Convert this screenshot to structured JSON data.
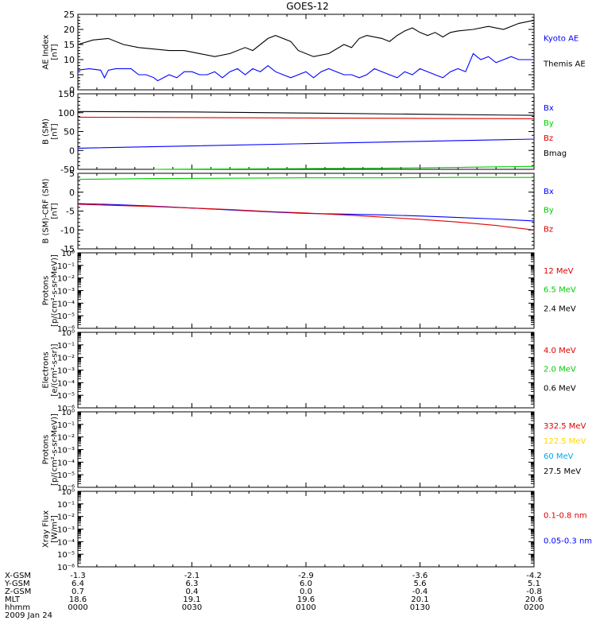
{
  "title": "GOES-12",
  "colors": {
    "black": "#000000",
    "blue": "#0000ff",
    "red": "#dd0000",
    "green": "#00cc00",
    "yellow": "#ffd700",
    "cyan": "#00a8e8"
  },
  "chart_data": [
    {
      "type": "line",
      "panel": "ae",
      "ylabel": [
        "AE Index",
        "[nT]"
      ],
      "ylim": [
        0,
        25
      ],
      "scale": "linear",
      "yticks": [
        "0",
        "5",
        "10",
        "15",
        "20",
        "25"
      ],
      "xlim": [
        0,
        120
      ],
      "legend": [
        {
          "text": "Kyoto AE",
          "color": "blue"
        },
        {
          "text": "Themis AE",
          "color": "black"
        }
      ],
      "series": [
        {
          "color": "black",
          "x": [
            0,
            4,
            8,
            12,
            16,
            20,
            24,
            28,
            32,
            36,
            40,
            44,
            46,
            50,
            52,
            56,
            58,
            62,
            66,
            70,
            72,
            74,
            76,
            80,
            82,
            84,
            86,
            88,
            90,
            92,
            94,
            96,
            98,
            100,
            104,
            108,
            112,
            116,
            120
          ],
          "y": [
            15,
            16.5,
            17,
            15,
            14,
            13.5,
            13,
            13,
            12,
            11,
            12,
            14,
            13,
            17,
            18,
            16,
            13,
            11,
            12,
            15,
            14,
            17,
            18,
            17,
            16,
            18,
            19.5,
            20.5,
            19,
            18,
            19,
            17.5,
            19,
            19.5,
            20,
            21,
            20,
            22,
            23
          ]
        },
        {
          "color": "blue",
          "x": [
            0,
            3,
            6,
            7,
            8,
            10,
            12,
            14,
            16,
            18,
            20,
            21,
            24,
            26,
            28,
            30,
            32,
            34,
            36,
            38,
            40,
            42,
            44,
            46,
            48,
            50,
            52,
            54,
            56,
            58,
            60,
            62,
            64,
            66,
            68,
            70,
            72,
            74,
            76,
            78,
            80,
            82,
            84,
            86,
            88,
            90,
            92,
            94,
            96,
            98,
            100,
            102,
            104,
            106,
            108,
            110,
            112,
            114,
            116,
            118,
            120
          ],
          "y": [
            6.5,
            7,
            6.5,
            4,
            6.5,
            7,
            7,
            7,
            5,
            5,
            4,
            3,
            5,
            4,
            6,
            6,
            5,
            5,
            6,
            4,
            6,
            7,
            5,
            7,
            6,
            8,
            6,
            5,
            4,
            5,
            6,
            4,
            6,
            7,
            6,
            5,
            5,
            4,
            5,
            7,
            6,
            5,
            4,
            6,
            5,
            7,
            6,
            5,
            4,
            6,
            7,
            6,
            12,
            10,
            11,
            9,
            10,
            11,
            10,
            10,
            10
          ]
        }
      ]
    },
    {
      "type": "line",
      "panel": "b-sm",
      "ylabel": [
        "B (SM)",
        "[nT]"
      ],
      "ylim": [
        -50,
        150
      ],
      "scale": "linear",
      "yticks": [
        "-50",
        "0",
        "50",
        "100",
        "150"
      ],
      "xlim": [
        0,
        120
      ],
      "legend": [
        {
          "text": "Bx",
          "color": "blue"
        },
        {
          "text": "By",
          "color": "green"
        },
        {
          "text": "Bz",
          "color": "red"
        },
        {
          "text": "Bmag",
          "color": "black"
        }
      ],
      "series": [
        {
          "color": "black",
          "x": [
            0,
            30,
            60,
            90,
            120
          ],
          "y": [
            103,
            102,
            99,
            96,
            93
          ]
        },
        {
          "color": "red",
          "x": [
            0,
            30,
            60,
            90,
            120
          ],
          "y": [
            88,
            87,
            86,
            85,
            84
          ]
        },
        {
          "color": "blue",
          "x": [
            0,
            30,
            60,
            90,
            120
          ],
          "y": [
            6,
            12,
            18,
            24,
            30
          ]
        },
        {
          "color": "green",
          "x": [
            20,
            40,
            60,
            80,
            100,
            120
          ],
          "y": [
            -50,
            -49,
            -48,
            -47,
            -45,
            -42
          ]
        }
      ]
    },
    {
      "type": "line",
      "panel": "b-sm-crf",
      "ylabel": [
        "B (SM)-CRF (SM)",
        "[nT]"
      ],
      "ylim": [
        -15,
        5
      ],
      "scale": "linear",
      "yticks": [
        "-15",
        "-10",
        "-5",
        "0",
        "5"
      ],
      "xlim": [
        0,
        120
      ],
      "legend": [
        {
          "text": "Bx",
          "color": "blue"
        },
        {
          "text": "By",
          "color": "green"
        },
        {
          "text": "Bz",
          "color": "red"
        }
      ],
      "series": [
        {
          "color": "green",
          "x": [
            0,
            20,
            40,
            60,
            80,
            100,
            120
          ],
          "y": [
            3.4,
            3.6,
            3.7,
            3.8,
            3.8,
            3.9,
            3.9
          ]
        },
        {
          "color": "blue",
          "x": [
            0,
            10,
            20,
            30,
            40,
            50,
            60,
            70,
            80,
            90,
            100,
            110,
            120
          ],
          "y": [
            -3,
            -3.3,
            -3.7,
            -4.2,
            -4.7,
            -5.2,
            -5.6,
            -5.8,
            -6,
            -6.3,
            -6.7,
            -7.1,
            -7.6
          ]
        },
        {
          "color": "red",
          "x": [
            0,
            10,
            20,
            30,
            40,
            50,
            60,
            70,
            80,
            90,
            100,
            110,
            120
          ],
          "y": [
            -3.2,
            -3.5,
            -3.8,
            -4.2,
            -4.6,
            -5.1,
            -5.5,
            -6,
            -6.6,
            -7.2,
            -7.9,
            -8.8,
            -10
          ]
        }
      ]
    },
    {
      "type": "line",
      "panel": "protons-1",
      "ylabel": [
        "Protons",
        "[p/(cm²-s-sr-MeV)]"
      ],
      "ylim": [
        -6,
        0
      ],
      "scale": "log",
      "yticks": [
        "10⁰",
        "10⁻¹",
        "10⁻²",
        "10⁻³",
        "10⁻⁴",
        "10⁻⁵",
        "10⁻⁶"
      ],
      "legend": [
        {
          "text": "12 MeV",
          "color": "red"
        },
        {
          "text": "6.5 MeV",
          "color": "green"
        },
        {
          "text": "2.4 MeV",
          "color": "black"
        }
      ],
      "series": []
    },
    {
      "type": "line",
      "panel": "electrons",
      "ylabel": [
        "Electrons",
        "[e/(cm²-s-sr)]"
      ],
      "ylim": [
        -6,
        0
      ],
      "scale": "log",
      "yticks": [
        "10⁰",
        "10⁻¹",
        "10⁻²",
        "10⁻³",
        "10⁻⁴",
        "10⁻⁵",
        "10⁻⁶"
      ],
      "legend": [
        {
          "text": "4.0 MeV",
          "color": "red"
        },
        {
          "text": "2.0 MeV",
          "color": "green"
        },
        {
          "text": "0.6 MeV",
          "color": "black"
        }
      ],
      "series": []
    },
    {
      "type": "line",
      "panel": "protons-2",
      "ylabel": [
        "Protons",
        "[p/(cm²-s-sr-MeV)]"
      ],
      "ylim": [
        -6,
        0
      ],
      "scale": "log",
      "yticks": [
        "10⁰",
        "10⁻¹",
        "10⁻²",
        "10⁻³",
        "10⁻⁴",
        "10⁻⁵",
        "10⁻⁶"
      ],
      "legend": [
        {
          "text": "332.5 MeV",
          "color": "red"
        },
        {
          "text": "122.5 MeV",
          "color": "yellow"
        },
        {
          "text": "60 MeV",
          "color": "cyan"
        },
        {
          "text": "27.5 MeV",
          "color": "black"
        }
      ],
      "series": []
    },
    {
      "type": "line",
      "panel": "xray",
      "ylabel": [
        "Xray Flux",
        "[W/m²]"
      ],
      "ylim": [
        -6,
        0
      ],
      "scale": "log",
      "yticks": [
        "10⁰",
        "10⁻¹",
        "10⁻²",
        "10⁻³",
        "10⁻⁴",
        "10⁻⁵",
        "10⁻⁶"
      ],
      "legend": [
        {
          "text": "0.1-0.8 nm",
          "color": "red"
        },
        {
          "text": "0.05-0.3 nm",
          "color": "blue"
        }
      ],
      "series": []
    }
  ],
  "xaxis": {
    "labels": [
      "X-GSM",
      "Y-GSM",
      "Z-GSM",
      "MLT",
      "hhmm",
      "2009 Jan 24"
    ],
    "columns": [
      [
        "-1.3",
        "6.4",
        "0.7",
        "18.6",
        "0000"
      ],
      [
        "-2.1",
        "6.3",
        "0.4",
        "19.1",
        "0030"
      ],
      [
        "-2.9",
        "6.0",
        "0.0",
        "19.6",
        "0100"
      ],
      [
        "-3.6",
        "5.6",
        "-0.4",
        "20.1",
        "0130"
      ],
      [
        "-4.2",
        "5.1",
        "-0.8",
        "20.6",
        "0200"
      ]
    ]
  }
}
